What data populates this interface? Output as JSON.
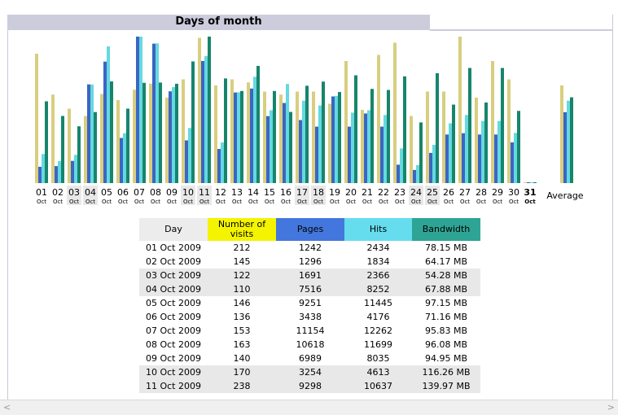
{
  "section_title": "Days of month",
  "average_label": "Average",
  "month_label": "Oct",
  "colors": {
    "visits": "#d9ce80",
    "pages": "#3a66c4",
    "hits": "#66d8e0",
    "bandwidth": "#16856c",
    "weekend_bg": "#e8e8e8"
  },
  "table": {
    "headers": [
      "Day",
      "Number of visits",
      "Pages",
      "Hits",
      "Bandwidth"
    ],
    "rows": [
      [
        "01 Oct 2009",
        "212",
        "1242",
        "2434",
        "78.15 MB"
      ],
      [
        "02 Oct 2009",
        "145",
        "1296",
        "1834",
        "64.17 MB"
      ],
      [
        "03 Oct 2009",
        "122",
        "1691",
        "2366",
        "54.28 MB"
      ],
      [
        "04 Oct 2009",
        "110",
        "7516",
        "8252",
        "67.88 MB"
      ],
      [
        "05 Oct 2009",
        "146",
        "9251",
        "11445",
        "97.15 MB"
      ],
      [
        "06 Oct 2009",
        "136",
        "3438",
        "4176",
        "71.16 MB"
      ],
      [
        "07 Oct 2009",
        "153",
        "11154",
        "12262",
        "95.83 MB"
      ],
      [
        "08 Oct 2009",
        "163",
        "10618",
        "11699",
        "96.08 MB"
      ],
      [
        "09 Oct 2009",
        "140",
        "6989",
        "8035",
        "94.95 MB"
      ],
      [
        "10 Oct 2009",
        "170",
        "3254",
        "4613",
        "116.26 MB"
      ],
      [
        "11 Oct 2009",
        "238",
        "9298",
        "10637",
        "139.97 MB"
      ]
    ]
  },
  "chart_data": {
    "type": "bar",
    "categories": [
      "01",
      "02",
      "03",
      "04",
      "05",
      "06",
      "07",
      "08",
      "09",
      "10",
      "11",
      "12",
      "13",
      "14",
      "15",
      "16",
      "17",
      "18",
      "19",
      "20",
      "21",
      "22",
      "23",
      "24",
      "25",
      "26",
      "27",
      "28",
      "29",
      "30",
      "31"
    ],
    "weekend_days": [
      "03",
      "04",
      "10",
      "11",
      "17",
      "18",
      "24",
      "25"
    ],
    "highlight_day": "31",
    "series": [
      {
        "key": "visits",
        "values": [
          212,
          145,
          122,
          110,
          146,
          136,
          153,
          163,
          140,
          170,
          238,
          160,
          170,
          165,
          150,
          145,
          150,
          150,
          130,
          200,
          120,
          210,
          230,
          110,
          150,
          150,
          240,
          140,
          200,
          170,
          0
        ]
      },
      {
        "key": "pages",
        "values": [
          1242,
          1296,
          1691,
          7516,
          9251,
          3438,
          11154,
          10618,
          6989,
          3254,
          9298,
          2600,
          6900,
          7200,
          5100,
          6100,
          4800,
          4300,
          6600,
          4300,
          5300,
          4300,
          1400,
          1000,
          2300,
          3700,
          3800,
          3700,
          3700,
          3100,
          0
        ]
      },
      {
        "key": "hits",
        "values": [
          2434,
          1834,
          2366,
          8252,
          11445,
          4176,
          12262,
          11699,
          8035,
          4613,
          10637,
          3400,
          7600,
          8900,
          6100,
          8300,
          6900,
          6500,
          7300,
          5900,
          6100,
          5700,
          2900,
          1500,
          3200,
          5000,
          5700,
          5200,
          5200,
          4200,
          0
        ]
      },
      {
        "key": "bandwidth",
        "values": [
          78.15,
          64.17,
          54.28,
          67.88,
          97.15,
          71.16,
          95.83,
          96.08,
          94.95,
          116.26,
          139.97,
          100,
          88,
          112,
          88,
          68,
          93,
          97,
          87,
          103,
          90,
          89,
          102,
          58,
          105,
          75,
          110,
          77,
          110,
          69,
          0
        ]
      }
    ],
    "average": {
      "visits": 160,
      "pages": 5400,
      "hits": 6900,
      "bandwidth": 82
    }
  }
}
